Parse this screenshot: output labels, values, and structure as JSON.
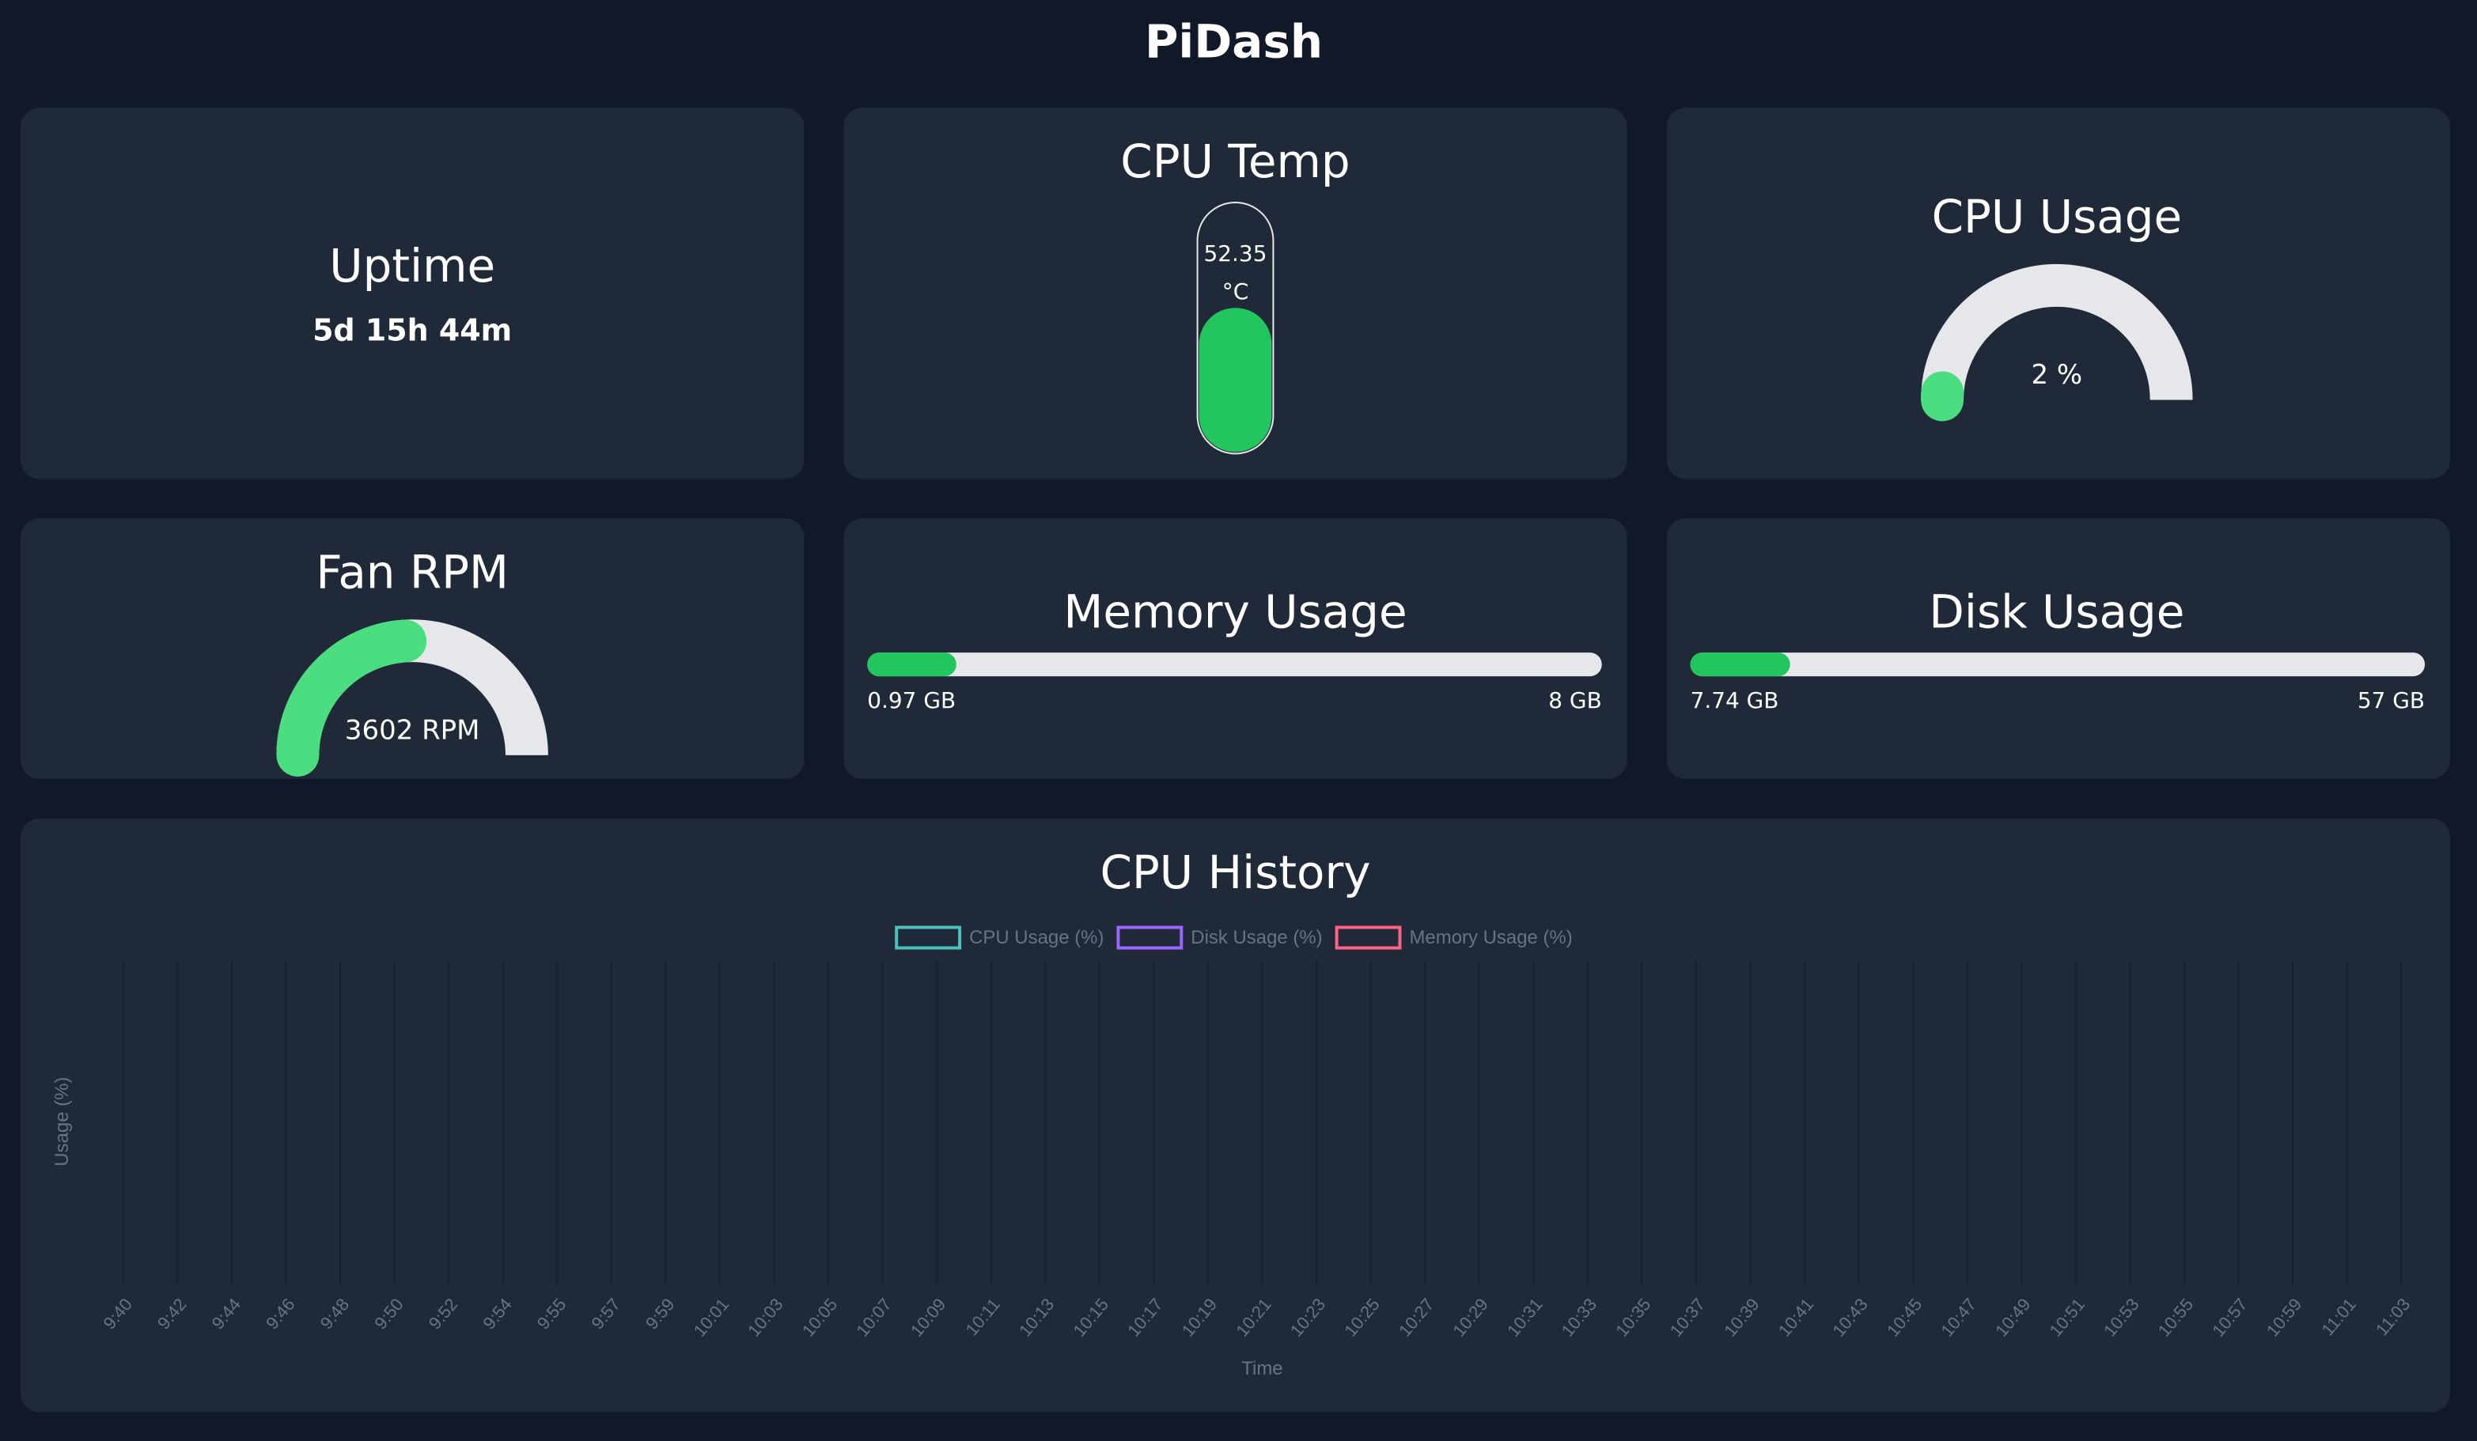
{
  "header": {
    "title": "PiDash"
  },
  "uptime": {
    "title": "Uptime",
    "value": "5d 15h 44m"
  },
  "cpu_temp": {
    "title": "CPU Temp",
    "value": 52.35,
    "unit": "°C",
    "range": [
      0,
      90
    ]
  },
  "cpu_usage": {
    "title": "CPU Usage",
    "value": 2,
    "value_label": "2 %",
    "range": [
      0,
      100
    ]
  },
  "fan": {
    "title": "Fan RPM",
    "value": 3602,
    "value_label": "3602 RPM",
    "range": [
      0,
      7500
    ]
  },
  "memory": {
    "title": "Memory Usage",
    "used": 0.97,
    "used_label": "0.97 GB",
    "total": 8,
    "total_label": "8 GB"
  },
  "disk": {
    "title": "Disk Usage",
    "used": 7.74,
    "used_label": "7.74 GB",
    "total": 57,
    "total_label": "57 GB"
  },
  "chart_data": {
    "type": "line",
    "title": "CPU History",
    "x_label": "Time",
    "y_label": "Usage (%)",
    "categories": [
      "9:40",
      "9:42",
      "9:44",
      "9:46",
      "9:48",
      "9:50",
      "9:52",
      "9:54",
      "9:55",
      "9:57",
      "9:59",
      "10:01",
      "10:03",
      "10:05",
      "10:07",
      "10:09",
      "10:11",
      "10:13",
      "10:15",
      "10:17",
      "10:19",
      "10:21",
      "10:23",
      "10:25",
      "10:27",
      "10:29",
      "10:31",
      "10:33",
      "10:35",
      "10:37",
      "10:39",
      "10:41",
      "10:43",
      "10:45",
      "10:47",
      "10:49",
      "10:51",
      "10:53",
      "10:55",
      "10:57",
      "10:59",
      "11:01",
      "11:03"
    ],
    "series": [
      {
        "name": "CPU Usage (%)",
        "color": "#4bc0c0",
        "values": [
          null,
          null,
          null,
          null,
          null,
          null,
          null,
          null,
          null,
          null,
          null,
          null,
          null,
          null,
          null,
          null,
          null,
          null,
          null,
          null,
          null,
          null,
          null,
          null,
          null,
          null,
          null,
          null,
          null,
          null,
          null,
          null,
          null,
          null,
          null,
          null,
          null,
          null,
          null,
          null,
          null,
          null,
          null
        ]
      },
      {
        "name": "Disk Usage (%)",
        "color": "#9966ff",
        "values": [
          null,
          null,
          null,
          null,
          null,
          null,
          null,
          null,
          null,
          null,
          null,
          null,
          null,
          null,
          null,
          null,
          null,
          null,
          null,
          null,
          null,
          null,
          null,
          null,
          null,
          null,
          null,
          null,
          null,
          null,
          null,
          null,
          null,
          null,
          null,
          null,
          null,
          null,
          null,
          null,
          null,
          null,
          null
        ]
      },
      {
        "name": "Memory Usage (%)",
        "color": "#ff6384",
        "values": [
          null,
          null,
          null,
          null,
          null,
          null,
          null,
          null,
          null,
          null,
          null,
          null,
          null,
          null,
          null,
          null,
          null,
          null,
          null,
          null,
          null,
          null,
          null,
          null,
          null,
          null,
          null,
          null,
          null,
          null,
          null,
          null,
          null,
          null,
          null,
          null,
          null,
          null,
          null,
          null,
          null,
          null,
          null
        ]
      }
    ],
    "grid": true,
    "legend": "top"
  }
}
